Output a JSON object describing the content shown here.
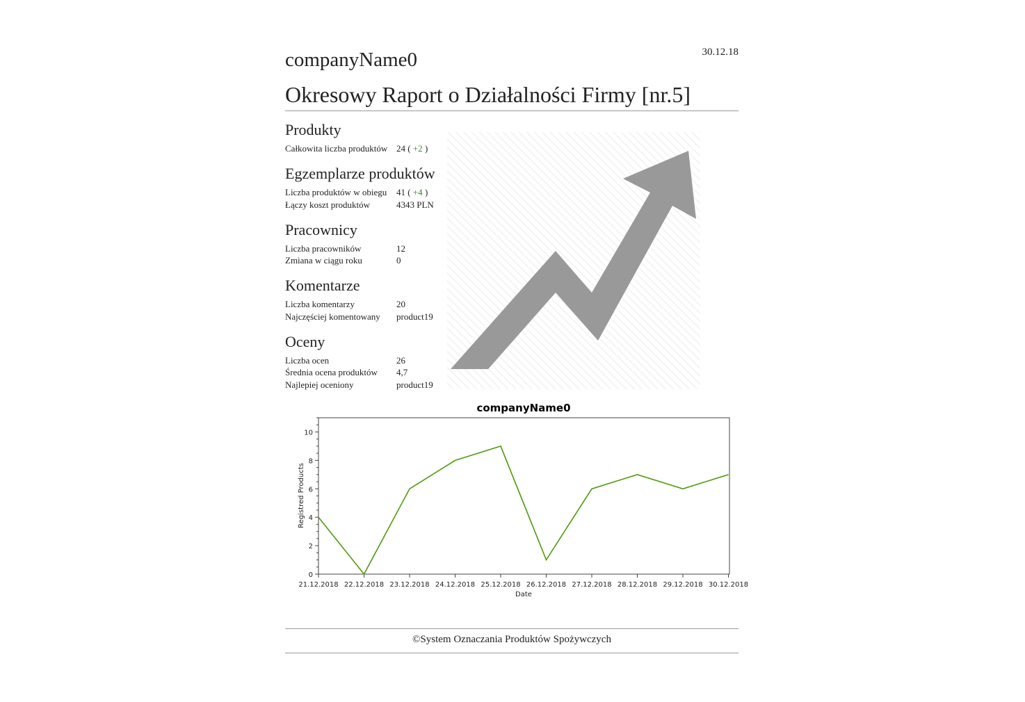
{
  "header": {
    "date": "30.12.18",
    "company": "companyName0",
    "title": "Okresowy Raport o Działalności Firmy [nr.5]"
  },
  "sections": {
    "produkty": {
      "heading": "Produkty",
      "rows": [
        {
          "label": "Całkowita liczba produktów",
          "value": "24",
          "delta_open": "( ",
          "delta": "+2",
          "delta_close": " )"
        }
      ]
    },
    "egzemplarze": {
      "heading": "Egzemplarze produktów",
      "rows": [
        {
          "label": "Liczba produktów w obiegu",
          "value": "41",
          "delta_open": "( ",
          "delta": "+4",
          "delta_close": " )"
        },
        {
          "label": "Łączy koszt produktów",
          "value": "4343 PLN"
        }
      ]
    },
    "pracownicy": {
      "heading": "Pracownicy",
      "rows": [
        {
          "label": "Liczba pracowników",
          "value": "12"
        },
        {
          "label": "Zmiana w ciągu roku",
          "value": "0"
        }
      ]
    },
    "komentarze": {
      "heading": "Komentarze",
      "rows": [
        {
          "label": "Liczba komentarzy",
          "value": "20"
        },
        {
          "label": "Najczęściej komentowany",
          "value": "product19"
        }
      ]
    },
    "oceny": {
      "heading": "Oceny",
      "rows": [
        {
          "label": "Liczba ocen",
          "value": "26"
        },
        {
          "label": "Średnia ocena produktów",
          "value": "4,7"
        },
        {
          "label": "Najlepiej oceniony",
          "value": "product19"
        }
      ]
    }
  },
  "decor": {
    "icon": "growth-arrow-icon",
    "color": "#999999"
  },
  "chart_data": {
    "type": "line",
    "title": "companyName0",
    "xlabel": "Date",
    "ylabel": "Registred Products",
    "categories": [
      "21.12.2018",
      "22.12.2018",
      "23.12.2018",
      "24.12.2018",
      "25.12.2018",
      "26.12.2018",
      "27.12.2018",
      "28.12.2018",
      "29.12.2018",
      "30.12.2018"
    ],
    "values": [
      4,
      0,
      6,
      8,
      9,
      1,
      6,
      7,
      6,
      7
    ],
    "ylim": [
      0,
      11
    ],
    "yticks": [
      0,
      2,
      4,
      6,
      8,
      10
    ],
    "line_color": "#4f9a0e",
    "grid": false
  },
  "footer": {
    "text": "©System Oznaczania Produktów Spożywczych"
  }
}
